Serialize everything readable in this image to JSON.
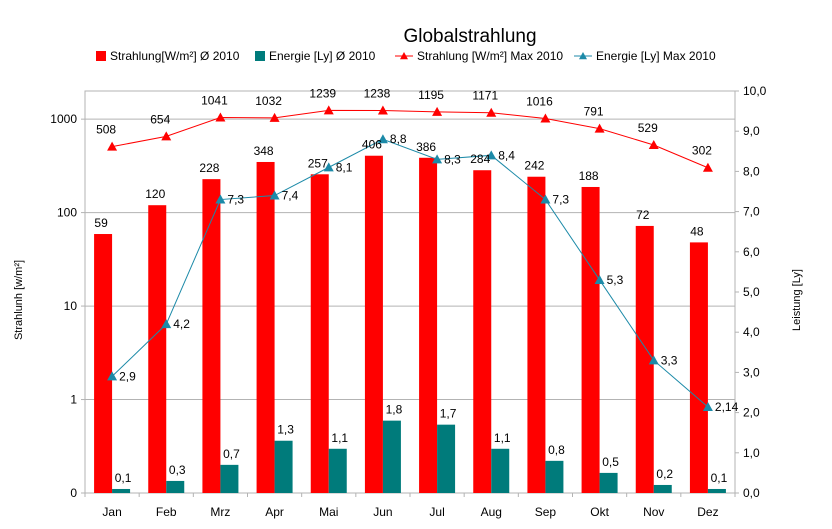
{
  "chart_data": {
    "type": "bar",
    "title": "Globalstrahlung",
    "categories": [
      "Jan",
      "Feb",
      "Mrz",
      "Apr",
      "Mai",
      "Jun",
      "Jul",
      "Aug",
      "Sep",
      "Okt",
      "Nov",
      "Dez"
    ],
    "series": [
      {
        "name": "Strahlung[W/m²] Ø 2010",
        "type": "bar",
        "axis": "left-log",
        "color": "#ff0000",
        "values": [
          59,
          120,
          228,
          348,
          257,
          406,
          386,
          284,
          242,
          188,
          72,
          48
        ],
        "labels": [
          "59",
          "120",
          "228",
          "348",
          "257",
          "406",
          "386",
          "284",
          "242",
          "188",
          "72",
          "48"
        ]
      },
      {
        "name": "Energie [Ly] Ø 2010",
        "type": "bar",
        "axis": "right",
        "color": "#007b7b",
        "values": [
          0.1,
          0.3,
          0.7,
          1.3,
          1.1,
          1.8,
          1.7,
          1.1,
          0.8,
          0.5,
          0.2,
          0.1
        ],
        "labels": [
          "0,1",
          "0,3",
          "0,7",
          "1,3",
          "1,1",
          "1,8",
          "1,7",
          "1,1",
          "0,8",
          "0,5",
          "0,2",
          "0,1"
        ]
      },
      {
        "name": "Strahlung [W/m²] Max 2010",
        "type": "line",
        "axis": "left-log",
        "color": "#ff0000",
        "marker": "triangle",
        "values": [
          508,
          654,
          1041,
          1032,
          1239,
          1238,
          1195,
          1171,
          1016,
          791,
          529,
          302
        ],
        "labels": [
          "508",
          "654",
          "1041",
          "1032",
          "1239",
          "1238",
          "1195",
          "1171",
          "1016",
          "791",
          "529",
          "302"
        ]
      },
      {
        "name": "Energie [Ly] Max 2010",
        "type": "line",
        "axis": "right",
        "color": "#1c8aa8",
        "marker": "triangle",
        "values": [
          2.9,
          4.2,
          7.3,
          7.4,
          8.1,
          8.8,
          8.3,
          8.4,
          7.3,
          5.3,
          3.3,
          2.14
        ],
        "labels": [
          "2,9",
          "4,2",
          "7,3",
          "7,4",
          "8,1",
          "8,8",
          "8,3",
          "8,4",
          "7,3",
          "5,3",
          "3,3",
          "2,14"
        ]
      }
    ],
    "left_axis": {
      "label": "Strahlunh [w/m²]",
      "scale": "log",
      "ylim": [
        0.1,
        2000
      ],
      "ticks": [
        {
          "value": 0.1,
          "label": "0"
        },
        {
          "value": 1,
          "label": "1"
        },
        {
          "value": 10,
          "label": "10"
        },
        {
          "value": 100,
          "label": "100"
        },
        {
          "value": 1000,
          "label": "1000"
        }
      ]
    },
    "right_axis": {
      "label": "Leistung [Ly]",
      "scale": "linear",
      "ylim": [
        0,
        10
      ],
      "ticks": [
        "0,0",
        "1,0",
        "2,0",
        "3,0",
        "4,0",
        "5,0",
        "6,0",
        "7,0",
        "8,0",
        "9,0",
        "10,0"
      ]
    },
    "grid": true,
    "legend": "top"
  }
}
